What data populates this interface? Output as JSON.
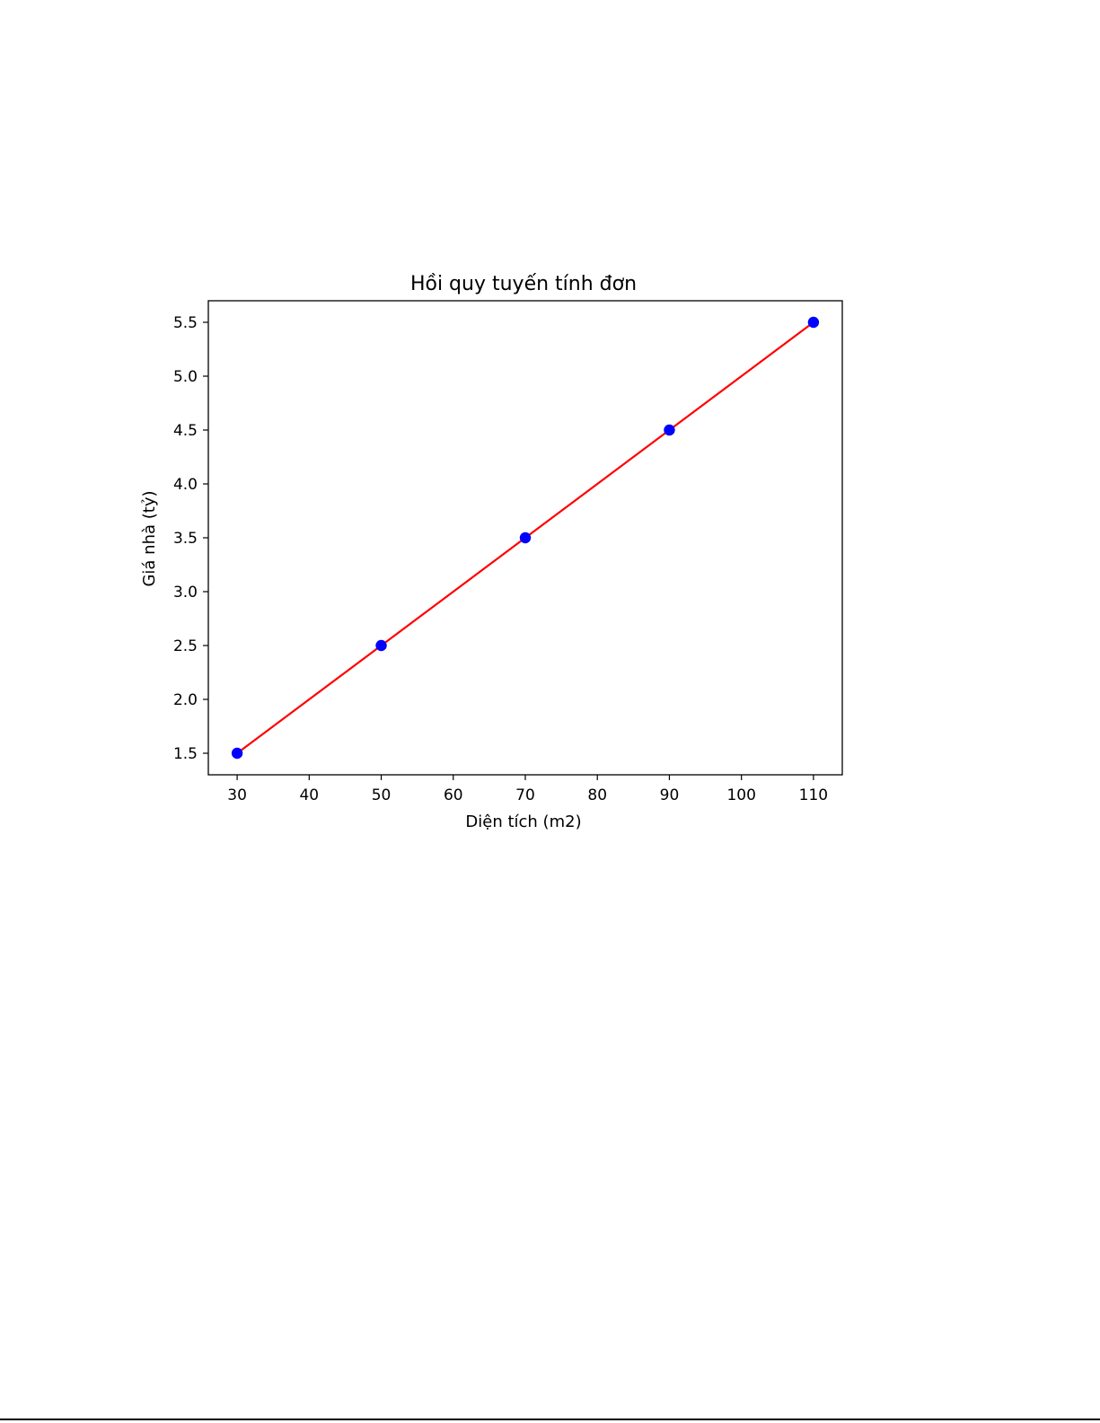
{
  "chart_data": {
    "type": "scatter",
    "title": "Hồi quy tuyến tính đơn",
    "xlabel": "Diện tích (m2)",
    "ylabel": "Giá nhà (tỷ)",
    "xlim": [
      26,
      114
    ],
    "ylim": [
      1.3,
      5.7
    ],
    "xticks": [
      30,
      40,
      50,
      60,
      70,
      80,
      90,
      100,
      110
    ],
    "yticks": [
      1.5,
      2.0,
      2.5,
      3.0,
      3.5,
      4.0,
      4.5,
      5.0,
      5.5
    ],
    "xtick_labels": [
      "30",
      "40",
      "50",
      "60",
      "70",
      "80",
      "90",
      "100",
      "110"
    ],
    "ytick_labels": [
      "1.5",
      "2.0",
      "2.5",
      "3.0",
      "3.5",
      "4.0",
      "4.5",
      "5.0",
      "5.5"
    ],
    "grid": false,
    "legend": "none",
    "series": [
      {
        "kind": "scatter",
        "color": "#0000ff",
        "x": [
          30,
          50,
          70,
          90,
          110
        ],
        "y": [
          1.5,
          2.5,
          3.5,
          4.5,
          5.5
        ]
      },
      {
        "kind": "line",
        "color": "#ff0000",
        "x": [
          30,
          50,
          70,
          90,
          110
        ],
        "y": [
          1.5,
          2.5,
          3.5,
          4.5,
          5.5
        ]
      }
    ]
  }
}
